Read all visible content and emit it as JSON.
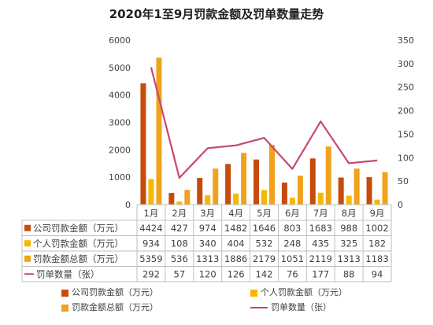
{
  "chart_data": {
    "type": "bar",
    "title": "2020年1至9月罚款金额及罚单数量走势",
    "categories": [
      "1月",
      "2月",
      "3月",
      "4月",
      "5月",
      "6月",
      "7月",
      "8月",
      "9月"
    ],
    "series": [
      {
        "name": "公司罚款金额（万元）",
        "type": "bar",
        "axis": "left",
        "color": "#c64b0c",
        "values": [
          4424,
          427,
          974,
          1482,
          1646,
          803,
          1683,
          988,
          1002
        ]
      },
      {
        "name": "个人罚款金额（万元）",
        "type": "bar",
        "axis": "left",
        "color": "#f5b800",
        "values": [
          934,
          108,
          340,
          404,
          532,
          248,
          435,
          325,
          182
        ]
      },
      {
        "name": "罚款金额总额（万元）",
        "type": "bar",
        "axis": "left",
        "color": "#f0a21c",
        "values": [
          5359,
          536,
          1313,
          1886,
          2179,
          1051,
          2119,
          1313,
          1183
        ]
      },
      {
        "name": "罚单数量（张）",
        "type": "line",
        "axis": "right",
        "color": "#c7486a",
        "values": [
          292,
          57,
          120,
          126,
          142,
          76,
          177,
          88,
          94
        ]
      }
    ],
    "y_left": {
      "min": 0,
      "max": 6000,
      "ticks": [
        0,
        1000,
        2000,
        3000,
        4000,
        5000,
        6000
      ]
    },
    "y_right": {
      "min": 0,
      "max": 350,
      "ticks": [
        0,
        50,
        100,
        150,
        200,
        250,
        300,
        350
      ]
    },
    "grid": false,
    "data_table": true,
    "legend_position": "bottom"
  }
}
